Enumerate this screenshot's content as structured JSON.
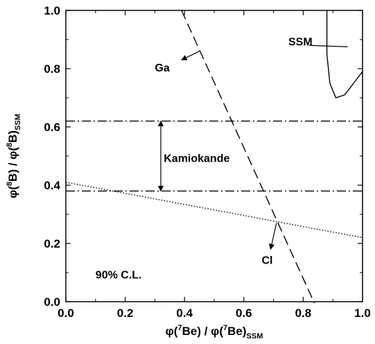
{
  "chart_data": {
    "type": "line",
    "title": "",
    "xlim": [
      0.0,
      1.0
    ],
    "ylim": [
      0.0,
      1.0
    ],
    "x_ticks": [
      0.0,
      0.2,
      0.4,
      0.6,
      0.8,
      1.0
    ],
    "y_ticks": [
      0.0,
      0.2,
      0.4,
      0.6,
      0.8,
      1.0
    ],
    "x_tick_labels": [
      "0.0",
      "0.2",
      "0.4",
      "0.6",
      "0.8",
      "1.0"
    ],
    "y_tick_labels": [
      "0.0",
      "0.2",
      "0.4",
      "0.6",
      "0.8",
      "1.0"
    ],
    "xlabel": {
      "pre": "φ(",
      "sup": "7",
      "mid": "Be) / φ(",
      "sup2": "7",
      "post": "Be)",
      "sub": "SSM"
    },
    "ylabel": {
      "pre": "φ(",
      "sup": "8",
      "mid": "B) / φ(",
      "sup2": "8",
      "post": "B)",
      "sub": "SSM"
    },
    "grid": false,
    "series": [
      {
        "name": "Ga",
        "style": "dashed",
        "x": [
          0.39,
          0.84
        ],
        "y": [
          1.0,
          -0.01
        ]
      },
      {
        "name": "Cl",
        "style": "dotted",
        "x": [
          0.0,
          1.0
        ],
        "y": [
          0.41,
          0.22
        ]
      },
      {
        "name": "Kamiokande",
        "style": "dashdot",
        "x": [
          0.0,
          1.0
        ],
        "y": [
          0.62,
          0.62
        ]
      },
      {
        "name": "Kamiokande",
        "style": "dashdot",
        "x": [
          0.0,
          1.0
        ],
        "y": [
          0.38,
          0.38
        ]
      },
      {
        "name": "SSM",
        "style": "solid",
        "x": [
          0.88,
          0.88,
          0.89,
          0.91,
          0.94,
          0.97,
          1.0
        ],
        "y": [
          1.0,
          0.85,
          0.75,
          0.7,
          0.71,
          0.75,
          0.79
        ]
      }
    ],
    "annotations": {
      "ssm": {
        "text": "SSM",
        "x": 0.75,
        "y": 0.88,
        "arrow": [
          [
            0.82,
            0.88
          ],
          [
            0.95,
            0.875
          ]
        ]
      },
      "ga": {
        "text": "Ga",
        "x": 0.3,
        "y": 0.79,
        "arrow": [
          [
            0.45,
            0.86
          ],
          [
            0.39,
            0.83
          ]
        ]
      },
      "kamiokande": {
        "text": "Kamiokande",
        "x": 0.33,
        "y": 0.48,
        "arrow": [
          [
            0.32,
            0.62
          ],
          [
            0.32,
            0.38
          ]
        ]
      },
      "cl": {
        "text": "Cl",
        "x": 0.66,
        "y": 0.13,
        "arrow": [
          [
            0.71,
            0.27
          ],
          [
            0.69,
            0.18
          ]
        ]
      },
      "cl_level": {
        "text": "90% C.L.",
        "x": 0.1,
        "y": 0.08
      }
    }
  }
}
